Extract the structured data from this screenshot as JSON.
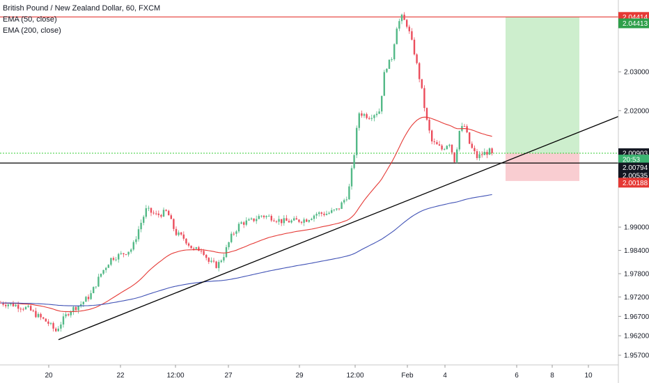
{
  "legend": {
    "symbol": "British Pound / New Zealand Dollar, 60, FXCM",
    "ema50": "EMA (50, close)",
    "ema200": "EMA (200, close)"
  },
  "colors": {
    "up": "#53b987",
    "down": "#eb4d5c",
    "ema50": "#e53935",
    "ema200": "#3f51b5",
    "trend": "#000000",
    "resistance": "#e53935",
    "entry": "#33cc33",
    "profit_zone": "#c8ecc8",
    "loss_zone": "#f8c8cc"
  },
  "chart_data": {
    "type": "candlestick",
    "y_axis": {
      "range": [
        1.9545,
        2.0485
      ],
      "ticks": [
        "2.03000",
        "2.02000",
        "1.99000",
        "1.98400",
        "1.97800",
        "1.97200",
        "1.96700",
        "1.96200",
        "1.95700"
      ]
    },
    "x_axis": {
      "ticks": [
        "20",
        "22",
        "12:00",
        "27",
        "29",
        "12:00",
        "Feb",
        "4",
        "6",
        "8",
        "10"
      ]
    },
    "price_labels": [
      {
        "text": "2.04414",
        "price": 2.04414,
        "bg": "#e53935"
      },
      {
        "text": "2.04413",
        "price": 2.04249,
        "bg": "#2e9f4a"
      },
      {
        "text": "2.00903",
        "price": 2.00903,
        "bg": "#131722"
      },
      {
        "text": "20:53",
        "price": 2.0074,
        "bg": "#3cb371"
      },
      {
        "text": "2.00794",
        "price": 2.00535,
        "bg": "#131722"
      },
      {
        "text": "2.00535",
        "price": 2.0033,
        "bg": "#131722"
      },
      {
        "text": "2.00188",
        "price": 2.00144,
        "bg": "#e53935"
      }
    ],
    "levels": {
      "resistance": 2.04414,
      "entry": 2.00903,
      "last": 2.00794,
      "stop": 2.00188
    },
    "trendline": {
      "from": {
        "t": 84,
        "p": 1.961
      },
      "to": {
        "t": 888,
        "p": 2.0185
      }
    },
    "position_box": {
      "t_start": 726,
      "t_end": 832,
      "target": 2.04414,
      "entry": 2.00903,
      "stop": 2.00188
    },
    "close_anchors": [
      {
        "t": 0,
        "p": 1.9705
      },
      {
        "t": 20,
        "p": 1.97
      },
      {
        "t": 40,
        "p": 1.969
      },
      {
        "t": 55,
        "p": 1.967
      },
      {
        "t": 68,
        "p": 1.9655
      },
      {
        "t": 80,
        "p": 1.9632
      },
      {
        "t": 90,
        "p": 1.966
      },
      {
        "t": 100,
        "p": 1.9685
      },
      {
        "t": 115,
        "p": 1.97
      },
      {
        "t": 130,
        "p": 1.9725
      },
      {
        "t": 145,
        "p": 1.978
      },
      {
        "t": 160,
        "p": 1.982
      },
      {
        "t": 175,
        "p": 1.983
      },
      {
        "t": 190,
        "p": 1.9845
      },
      {
        "t": 200,
        "p": 1.99
      },
      {
        "t": 210,
        "p": 1.9945
      },
      {
        "t": 225,
        "p": 1.993
      },
      {
        "t": 240,
        "p": 1.994
      },
      {
        "t": 252,
        "p": 1.9885
      },
      {
        "t": 265,
        "p": 1.987
      },
      {
        "t": 278,
        "p": 1.984
      },
      {
        "t": 290,
        "p": 1.9845
      },
      {
        "t": 300,
        "p": 1.981
      },
      {
        "t": 312,
        "p": 1.98
      },
      {
        "t": 322,
        "p": 1.983
      },
      {
        "t": 332,
        "p": 1.9875
      },
      {
        "t": 345,
        "p": 1.991
      },
      {
        "t": 360,
        "p": 1.9915
      },
      {
        "t": 375,
        "p": 1.993
      },
      {
        "t": 390,
        "p": 1.9925
      },
      {
        "t": 405,
        "p": 1.9915
      },
      {
        "t": 420,
        "p": 1.9915
      },
      {
        "t": 440,
        "p": 1.992
      },
      {
        "t": 455,
        "p": 1.9935
      },
      {
        "t": 470,
        "p": 1.9935
      },
      {
        "t": 485,
        "p": 1.9945
      },
      {
        "t": 500,
        "p": 1.9985
      },
      {
        "t": 508,
        "p": 2.008
      },
      {
        "t": 515,
        "p": 2.0195
      },
      {
        "t": 530,
        "p": 2.0185
      },
      {
        "t": 545,
        "p": 2.02
      },
      {
        "t": 553,
        "p": 2.031
      },
      {
        "t": 562,
        "p": 2.033
      },
      {
        "t": 570,
        "p": 2.042
      },
      {
        "t": 577,
        "p": 2.044
      },
      {
        "t": 585,
        "p": 2.042
      },
      {
        "t": 595,
        "p": 2.035
      },
      {
        "t": 605,
        "p": 2.026
      },
      {
        "t": 612,
        "p": 2.018
      },
      {
        "t": 620,
        "p": 2.012
      },
      {
        "t": 635,
        "p": 2.01
      },
      {
        "t": 645,
        "p": 2.012
      },
      {
        "t": 653,
        "p": 2.007
      },
      {
        "t": 660,
        "p": 2.015
      },
      {
        "t": 667,
        "p": 2.016
      },
      {
        "t": 675,
        "p": 2.011
      },
      {
        "t": 685,
        "p": 2.008
      },
      {
        "t": 695,
        "p": 2.009
      },
      {
        "t": 703,
        "p": 2.0095
      },
      {
        "t": 709,
        "p": 2.008
      }
    ]
  }
}
